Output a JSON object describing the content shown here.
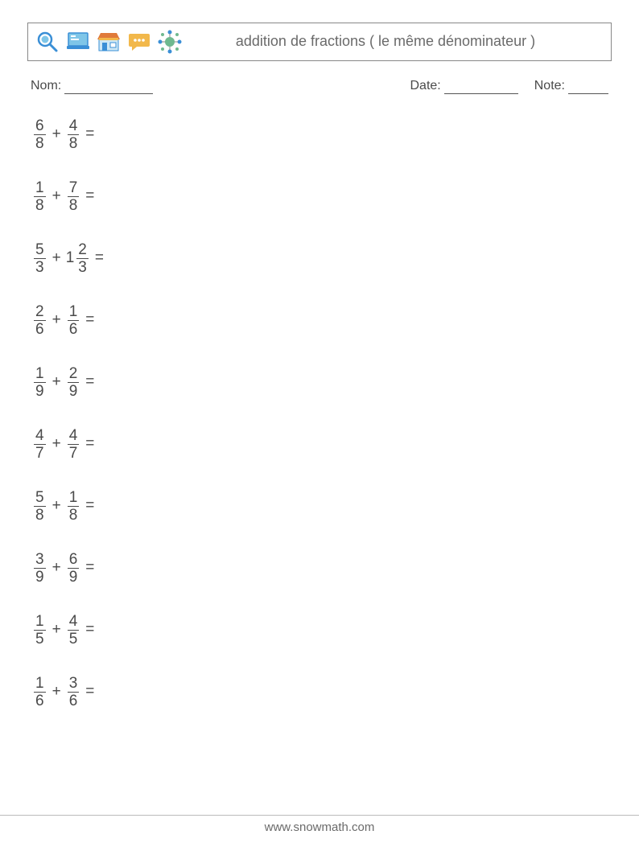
{
  "header": {
    "title": "addition de fractions ( le même dénominateur )",
    "icons": [
      "search-icon",
      "laptop-icon",
      "store-icon",
      "chat-icon",
      "network-icon"
    ],
    "icon_colors": {
      "search": "#3a8fd6",
      "laptop_frame": "#3a8fd6",
      "laptop_screen": "#7fc6e8",
      "store_roof": "#e07a3a",
      "store_body": "#3a8fd6",
      "chat": "#f2b84b",
      "network": "#6fb98f"
    }
  },
  "meta": {
    "name_label": "Nom:",
    "date_label": "Date:",
    "note_label": "Note:",
    "name_blank_width": 110,
    "date_blank_width": 92,
    "note_blank_width": 50
  },
  "problems": [
    {
      "a": {
        "whole": null,
        "num": "6",
        "den": "8"
      },
      "op": "+",
      "b": {
        "whole": null,
        "num": "4",
        "den": "8"
      }
    },
    {
      "a": {
        "whole": null,
        "num": "1",
        "den": "8"
      },
      "op": "+",
      "b": {
        "whole": null,
        "num": "7",
        "den": "8"
      }
    },
    {
      "a": {
        "whole": null,
        "num": "5",
        "den": "3"
      },
      "op": "+",
      "b": {
        "whole": "1",
        "num": "2",
        "den": "3"
      }
    },
    {
      "a": {
        "whole": null,
        "num": "2",
        "den": "6"
      },
      "op": "+",
      "b": {
        "whole": null,
        "num": "1",
        "den": "6"
      }
    },
    {
      "a": {
        "whole": null,
        "num": "1",
        "den": "9"
      },
      "op": "+",
      "b": {
        "whole": null,
        "num": "2",
        "den": "9"
      }
    },
    {
      "a": {
        "whole": null,
        "num": "4",
        "den": "7"
      },
      "op": "+",
      "b": {
        "whole": null,
        "num": "4",
        "den": "7"
      }
    },
    {
      "a": {
        "whole": null,
        "num": "5",
        "den": "8"
      },
      "op": "+",
      "b": {
        "whole": null,
        "num": "1",
        "den": "8"
      }
    },
    {
      "a": {
        "whole": null,
        "num": "3",
        "den": "9"
      },
      "op": "+",
      "b": {
        "whole": null,
        "num": "6",
        "den": "9"
      }
    },
    {
      "a": {
        "whole": null,
        "num": "1",
        "den": "5"
      },
      "op": "+",
      "b": {
        "whole": null,
        "num": "4",
        "den": "5"
      }
    },
    {
      "a": {
        "whole": null,
        "num": "1",
        "den": "6"
      },
      "op": "+",
      "b": {
        "whole": null,
        "num": "3",
        "den": "6"
      }
    }
  ],
  "equals": "=",
  "footer": "www.snowmath.com"
}
